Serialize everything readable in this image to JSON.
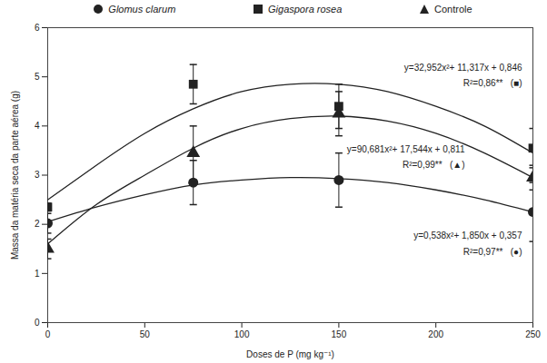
{
  "chart_data": {
    "type": "scatter",
    "x_label": "Doses de P (mg kg⁻¹)",
    "y_label": "Massa da matéria seca da parte aérea (g)",
    "xlim": [
      0,
      250
    ],
    "ylim": [
      0,
      6
    ],
    "xticks": [
      0,
      50,
      100,
      150,
      200,
      250
    ],
    "yticks": [
      0,
      1,
      2,
      3,
      4,
      5,
      6
    ],
    "legend": "top",
    "x": [
      0,
      75,
      150,
      250
    ],
    "fit_x": [
      0,
      25,
      50,
      75,
      100,
      125,
      150,
      175,
      200,
      225,
      250
    ],
    "series": [
      {
        "name": "Glomus clarum",
        "color": "#222222",
        "marker": "circle",
        "values": [
          2.02,
          2.85,
          2.9,
          2.25
        ],
        "errors": [
          0.2,
          0.45,
          0.55,
          0.6
        ],
        "fit": [
          2.05,
          2.35,
          2.6,
          2.8,
          2.9,
          2.95,
          2.93,
          2.85,
          2.7,
          2.5,
          2.25
        ],
        "equation": "y=0,538x²+ 1,850x + 0,357",
        "r2": "R²=0,97**   (●)"
      },
      {
        "name": "Gigaspora rosea",
        "color": "#222222",
        "marker": "square",
        "values": [
          2.35,
          4.85,
          4.4,
          3.55
        ],
        "errors": [
          0.08,
          0.4,
          0.45,
          0.4
        ],
        "fit": [
          2.5,
          3.2,
          3.85,
          4.35,
          4.7,
          4.85,
          4.85,
          4.7,
          4.4,
          4.0,
          3.45
        ],
        "equation": "y=32,952x²+ 11,317x + 0,846",
        "r2": "R²=0,86**   (■)"
      },
      {
        "name": "Controle",
        "color": "#222222",
        "marker": "triangle",
        "values": [
          1.5,
          3.45,
          4.25,
          2.95
        ],
        "errors": [
          0.2,
          0.55,
          0.45,
          0.25
        ],
        "fit": [
          1.6,
          2.4,
          3.0,
          3.55,
          3.95,
          4.15,
          4.2,
          4.1,
          3.85,
          3.45,
          2.95
        ],
        "equation": "y=90,681x²+ 17,544x + 0,811",
        "r2": "R²=0,99**   (▲)"
      }
    ]
  }
}
